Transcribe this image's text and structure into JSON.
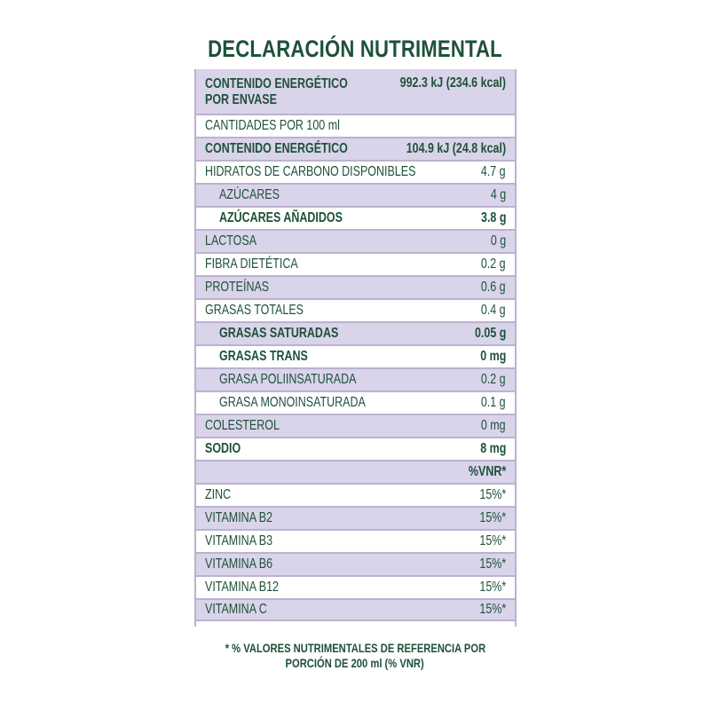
{
  "title": "DECLARACIÓN NUTRIMENTAL",
  "rows": [
    {
      "label": "CONTENIDO ENERGÉTICO POR ENVASE",
      "value": "992.3 kJ (234.6 kcal)",
      "bold": true,
      "indent": false,
      "shaded": true
    },
    {
      "label": "CANTIDADES POR 100 ml",
      "value": "",
      "bold": false,
      "indent": false,
      "shaded": false
    },
    {
      "label": "CONTENIDO ENERGÉTICO",
      "value": "104.9 kJ (24.8 kcal)",
      "bold": true,
      "indent": false,
      "shaded": true
    },
    {
      "label": "HIDRATOS DE CARBONO DISPONIBLES",
      "value": "4.7 g",
      "bold": false,
      "indent": false,
      "shaded": false
    },
    {
      "label": "AZÚCARES",
      "value": "4 g",
      "bold": false,
      "indent": true,
      "shaded": true
    },
    {
      "label": "AZÚCARES AÑADIDOS",
      "value": "3.8 g",
      "bold": true,
      "indent": true,
      "shaded": false
    },
    {
      "label": "LACTOSA",
      "value": "0 g",
      "bold": false,
      "indent": false,
      "shaded": true
    },
    {
      "label": "FIBRA DIETÉTICA",
      "value": "0.2 g",
      "bold": false,
      "indent": false,
      "shaded": false
    },
    {
      "label": "PROTEÍNAS",
      "value": "0.6 g",
      "bold": false,
      "indent": false,
      "shaded": true
    },
    {
      "label": "GRASAS TOTALES",
      "value": "0.4 g",
      "bold": false,
      "indent": false,
      "shaded": false
    },
    {
      "label": "GRASAS SATURADAS",
      "value": "0.05 g",
      "bold": true,
      "indent": true,
      "shaded": true
    },
    {
      "label": "GRASAS TRANS",
      "value": "0 mg",
      "bold": true,
      "indent": true,
      "shaded": false
    },
    {
      "label": "GRASA POLIINSATURADA",
      "value": "0.2 g",
      "bold": false,
      "indent": true,
      "shaded": true
    },
    {
      "label": "GRASA MONOINSATURADA",
      "value": "0.1 g",
      "bold": false,
      "indent": true,
      "shaded": false
    },
    {
      "label": "COLESTEROL",
      "value": "0 mg",
      "bold": false,
      "indent": false,
      "shaded": true
    },
    {
      "label": "SODIO",
      "value": "8 mg",
      "bold": true,
      "indent": false,
      "shaded": false
    },
    {
      "label": "",
      "value": "%VNR*",
      "bold": true,
      "indent": false,
      "shaded": true
    },
    {
      "label": "ZINC",
      "value": "15%*",
      "bold": false,
      "indent": false,
      "shaded": false
    },
    {
      "label": "VITAMINA B2",
      "value": "15%*",
      "bold": false,
      "indent": false,
      "shaded": true
    },
    {
      "label": "VITAMINA B3",
      "value": "15%*",
      "bold": false,
      "indent": false,
      "shaded": false
    },
    {
      "label": "VITAMINA B6",
      "value": "15%*",
      "bold": false,
      "indent": false,
      "shaded": true
    },
    {
      "label": "VITAMINA B12",
      "value": "15%*",
      "bold": false,
      "indent": false,
      "shaded": false
    },
    {
      "label": "VITAMINA C",
      "value": "15%*",
      "bold": false,
      "indent": false,
      "shaded": true
    }
  ],
  "footnote": {
    "line1": "* % VALORES NUTRIMENTALES DE REFERENCIA POR",
    "line2": "PORCIÓN DE 200 ml (% VNR)"
  },
  "colors": {
    "text": "#1e5138",
    "shaded_row": "#d9d4ea",
    "border": "#b9b3cf"
  }
}
